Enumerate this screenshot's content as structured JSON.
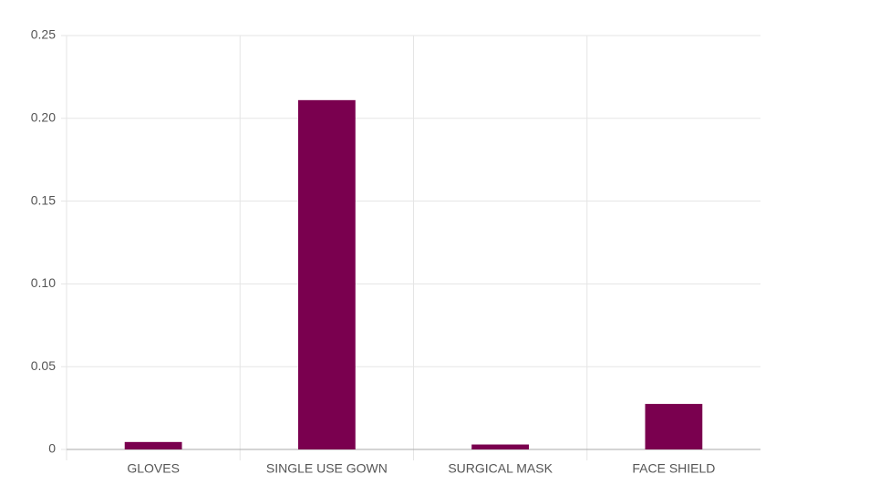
{
  "chart_data": {
    "type": "bar",
    "categories": [
      "GLOVES",
      "SINGLE USE GOWN",
      "SURGICAL MASK",
      "FACE SHIELD"
    ],
    "values": [
      0.0045,
      0.211,
      0.003,
      0.0275
    ],
    "color": "#7a004f",
    "ylim": [
      0,
      0.25
    ],
    "yticks": [
      0,
      0.05,
      {
        "value": 0.1,
        "label": "0.10"
      },
      0.15,
      {
        "value": 0.2,
        "label": "0.20"
      },
      0.25
    ],
    "grid": true
  }
}
